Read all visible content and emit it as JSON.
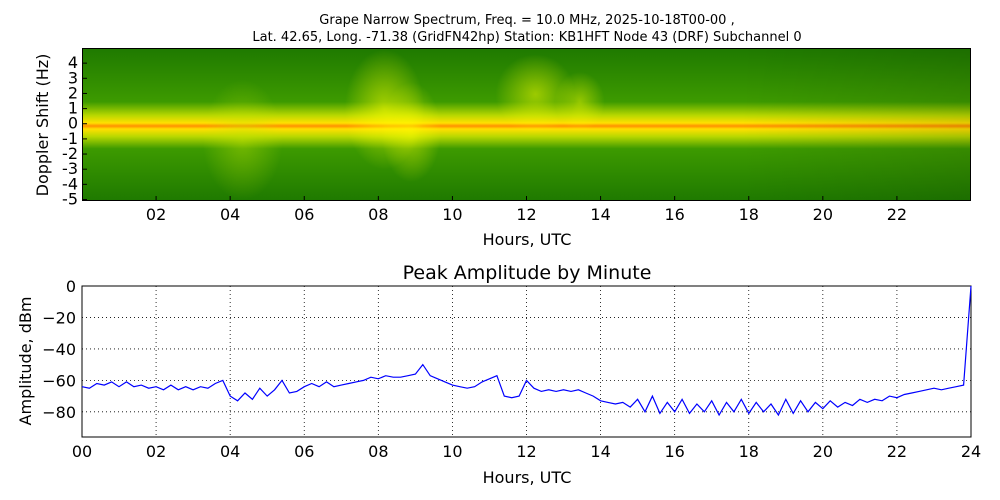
{
  "chart_data": [
    {
      "type": "heatmap",
      "title_line1": "Grape Narrow Spectrum, Freq. = 10.0 MHz, 2025-10-18T00-00 ,",
      "title_line2": "Lat.  42.65, Long. -71.38 (GridFN42hp) Station: KB1HFT Node 43 (DRF) Subchannel 0",
      "xlabel": "Hours, UTC",
      "ylabel": "Doppler Shift (Hz)",
      "xlim": [
        0,
        24
      ],
      "ylim": [
        -5.1,
        5
      ],
      "xticks": [
        2,
        4,
        6,
        8,
        10,
        12,
        14,
        16,
        18,
        20,
        22
      ],
      "xtick_labels": [
        "02",
        "04",
        "06",
        "08",
        "10",
        "12",
        "14",
        "16",
        "18",
        "20",
        "22"
      ],
      "yticks": [
        4,
        3,
        2,
        1,
        0,
        -1,
        -2,
        -3,
        -4,
        -5
      ],
      "ytick_labels": [
        "4",
        "3",
        "2",
        "1",
        "0",
        "-1",
        "-2",
        "-3",
        "-4",
        "-5"
      ],
      "colors": {
        "low": "#1f7a00",
        "mid": "#ffe000",
        "high": "#ff9000"
      }
    },
    {
      "type": "line",
      "title": "Peak Amplitude by Minute",
      "xlabel": "Hours, UTC",
      "ylabel": "Amplitude, dBm",
      "xlim": [
        0,
        24
      ],
      "ylim": [
        -96,
        0
      ],
      "grid": true,
      "xticks": [
        0,
        2,
        4,
        6,
        8,
        10,
        12,
        14,
        16,
        18,
        20,
        22,
        24
      ],
      "xtick_labels": [
        "00",
        "02",
        "04",
        "06",
        "08",
        "10",
        "12",
        "14",
        "16",
        "18",
        "20",
        "22",
        "24"
      ],
      "yticks": [
        0,
        -20,
        -40,
        -60,
        -80
      ],
      "ytick_labels": [
        "0",
        "−20",
        "−40",
        "−60",
        "−80"
      ],
      "color": "#0000ff",
      "x_step": 0.2,
      "values": [
        -64,
        -65,
        -62,
        -63,
        -61,
        -64,
        -61,
        -64,
        -63,
        -65,
        -64,
        -66,
        -63,
        -66,
        -64,
        -66,
        -64,
        -65,
        -62,
        -60,
        -70,
        -73,
        -68,
        -72,
        -65,
        -70,
        -66,
        -60,
        -68,
        -67,
        -64,
        -62,
        -64,
        -61,
        -64,
        -63,
        -62,
        -61,
        -60,
        -58,
        -59,
        -57,
        -58,
        -58,
        -57,
        -56,
        -50,
        -57,
        -59,
        -61,
        -63,
        -64,
        -65,
        -64,
        -61,
        -59,
        -57,
        -70,
        -71,
        -70,
        -60,
        -65,
        -67,
        -66,
        -67,
        -66,
        -67,
        -66,
        -68,
        -70,
        -73,
        -74,
        -75,
        -74,
        -77,
        -72,
        -80,
        -70,
        -81,
        -74,
        -80,
        -72,
        -81,
        -75,
        -80,
        -73,
        -82,
        -74,
        -80,
        -72,
        -81,
        -74,
        -80,
        -75,
        -82,
        -72,
        -81,
        -73,
        -80,
        -74,
        -78,
        -73,
        -77,
        -74,
        -76,
        -72,
        -74,
        -72,
        -73,
        -70,
        -71,
        -69,
        -68,
        -67,
        -66,
        -65,
        -66,
        -65,
        -64,
        -63,
        0
      ]
    }
  ]
}
